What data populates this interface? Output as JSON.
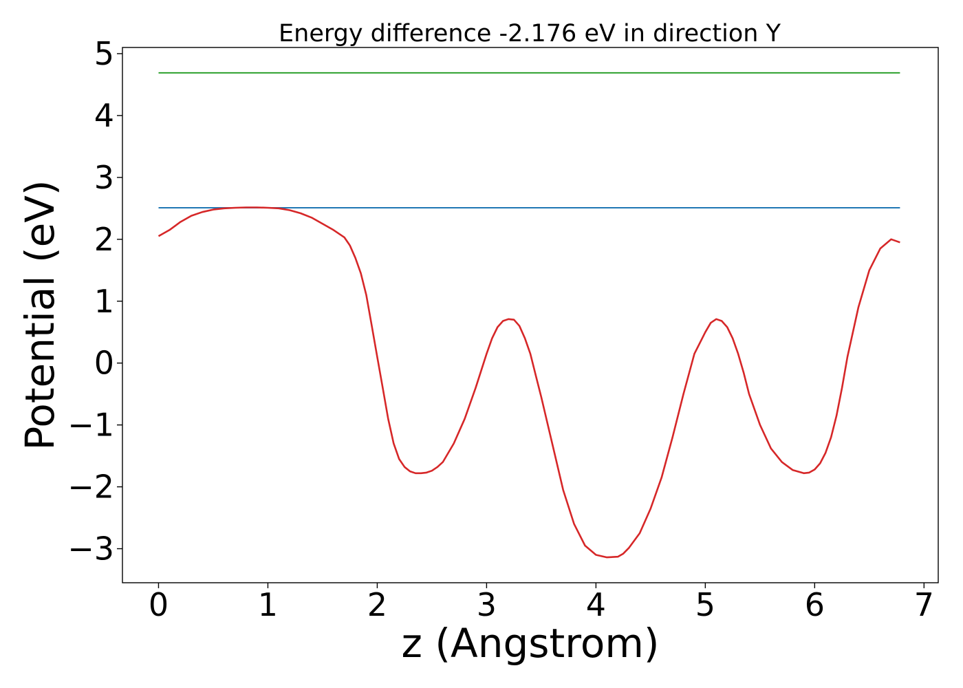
{
  "chart_data": {
    "type": "line",
    "title": "Energy difference -2.176 eV in direction Y",
    "xlabel": "z (Angstrom)",
    "ylabel": "Potential (eV)",
    "xlim": [
      -0.33,
      7.13
    ],
    "ylim": [
      -3.55,
      5.1
    ],
    "x_ticks": [
      "0",
      "1",
      "2",
      "3",
      "4",
      "5",
      "6",
      "7"
    ],
    "y_ticks": [
      "−3",
      "−2",
      "−1",
      "0",
      "1",
      "2",
      "3",
      "4",
      "5"
    ],
    "grid": false,
    "legend": "none",
    "series": [
      {
        "color": "#2ca02c",
        "x": [
          0.0,
          6.78
        ],
        "y": [
          4.69,
          4.69
        ]
      },
      {
        "color": "#1f77b4",
        "x": [
          0.0,
          6.78
        ],
        "y": [
          2.51,
          2.51
        ]
      },
      {
        "color": "#d62728",
        "x": [
          0.0,
          0.1,
          0.2,
          0.3,
          0.4,
          0.5,
          0.6,
          0.7,
          0.8,
          0.9,
          1.0,
          1.1,
          1.2,
          1.3,
          1.4,
          1.5,
          1.6,
          1.7,
          1.75,
          1.8,
          1.85,
          1.9,
          1.95,
          2.0,
          2.05,
          2.1,
          2.15,
          2.2,
          2.25,
          2.3,
          2.35,
          2.4,
          2.45,
          2.5,
          2.55,
          2.6,
          2.7,
          2.8,
          2.9,
          3.0,
          3.05,
          3.1,
          3.15,
          3.2,
          3.25,
          3.3,
          3.35,
          3.4,
          3.45,
          3.5,
          3.6,
          3.7,
          3.8,
          3.9,
          4.0,
          4.1,
          4.2,
          4.25,
          4.3,
          4.4,
          4.5,
          4.6,
          4.7,
          4.8,
          4.9,
          5.0,
          5.05,
          5.1,
          5.15,
          5.2,
          5.25,
          5.3,
          5.35,
          5.4,
          5.5,
          5.6,
          5.7,
          5.8,
          5.9,
          5.95,
          6.0,
          6.05,
          6.1,
          6.15,
          6.2,
          6.25,
          6.3,
          6.4,
          6.5,
          6.6,
          6.7,
          6.78
        ],
        "y": [
          2.05,
          2.15,
          2.28,
          2.38,
          2.44,
          2.48,
          2.5,
          2.51,
          2.515,
          2.515,
          2.51,
          2.5,
          2.47,
          2.42,
          2.35,
          2.25,
          2.15,
          2.03,
          1.9,
          1.7,
          1.45,
          1.1,
          0.6,
          0.1,
          -0.4,
          -0.9,
          -1.3,
          -1.55,
          -1.68,
          -1.75,
          -1.78,
          -1.78,
          -1.77,
          -1.74,
          -1.68,
          -1.6,
          -1.3,
          -0.9,
          -0.4,
          0.15,
          0.4,
          0.58,
          0.68,
          0.71,
          0.7,
          0.6,
          0.4,
          0.15,
          -0.2,
          -0.55,
          -1.3,
          -2.05,
          -2.6,
          -2.95,
          -3.1,
          -3.14,
          -3.13,
          -3.08,
          -2.99,
          -2.75,
          -2.35,
          -1.85,
          -1.2,
          -0.5,
          0.15,
          0.5,
          0.65,
          0.71,
          0.68,
          0.58,
          0.4,
          0.15,
          -0.15,
          -0.5,
          -1.0,
          -1.38,
          -1.6,
          -1.73,
          -1.78,
          -1.77,
          -1.72,
          -1.62,
          -1.45,
          -1.2,
          -0.85,
          -0.4,
          0.1,
          0.9,
          1.5,
          1.85,
          2.0,
          1.95
        ]
      }
    ]
  }
}
